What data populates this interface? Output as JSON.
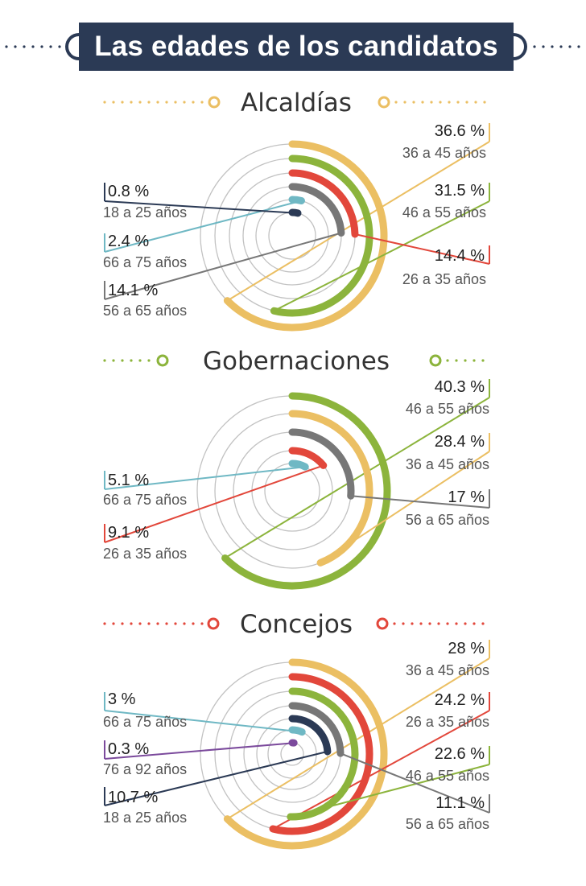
{
  "title": "Las edades de los candidatos",
  "colors": {
    "banner": "#2b3a55",
    "18 a 25 años": "#2b3a55",
    "26 a 35 años": "#e2473b",
    "36 a 45 años": "#ebbf63",
    "46 a 55 años": "#8cb43c",
    "56 a 65 años": "#777777",
    "66 a 75 años": "#6fb8c4",
    "76 a 92 años": "#7b4a9c",
    "guide": "#c2c2c2"
  },
  "chart_data": [
    {
      "type": "radial-bar",
      "title": "Alcaldías",
      "unit": "%",
      "series": [
        {
          "category": "36 a 45 años",
          "value": 36.6,
          "label": "36.6 %"
        },
        {
          "category": "46 a 55 años",
          "value": 31.5,
          "label": "31.5 %"
        },
        {
          "category": "26 a 35 años",
          "value": 14.4,
          "label": "14.4 %"
        },
        {
          "category": "56 a 65 años",
          "value": 14.1,
          "label": "14.1 %"
        },
        {
          "category": "66 a 75 años",
          "value": 2.4,
          "label": "2.4 %"
        },
        {
          "category": "18 a 25 años",
          "value": 0.8,
          "label": "0.8 %"
        }
      ]
    },
    {
      "type": "radial-bar",
      "title": "Gobernaciones",
      "unit": "%",
      "series": [
        {
          "category": "46 a 55 años",
          "value": 40.3,
          "label": "40.3 %"
        },
        {
          "category": "36 a 45 años",
          "value": 28.4,
          "label": "28.4 %"
        },
        {
          "category": "56 a 65 años",
          "value": 17,
          "label": "17 %"
        },
        {
          "category": "26 a 35 años",
          "value": 9.1,
          "label": "9.1 %"
        },
        {
          "category": "66 a 75 años",
          "value": 5.1,
          "label": "5.1 %"
        }
      ]
    },
    {
      "type": "radial-bar",
      "title": "Concejos",
      "unit": "%",
      "series": [
        {
          "category": "36 a 45 años",
          "value": 28,
          "label": "28 %"
        },
        {
          "category": "26 a 35 años",
          "value": 24.2,
          "label": "24.2 %"
        },
        {
          "category": "46 a 55 años",
          "value": 22.6,
          "label": "22.6 %"
        },
        {
          "category": "56 a 65 años",
          "value": 11.1,
          "label": "11.1 %"
        },
        {
          "category": "18 a 25 años",
          "value": 10.7,
          "label": "10.7 %"
        },
        {
          "category": "66 a 75 años",
          "value": 3,
          "label": "3 %"
        },
        {
          "category": "76 a 92 años",
          "value": 0.3,
          "label": "0.3 %"
        }
      ]
    }
  ]
}
